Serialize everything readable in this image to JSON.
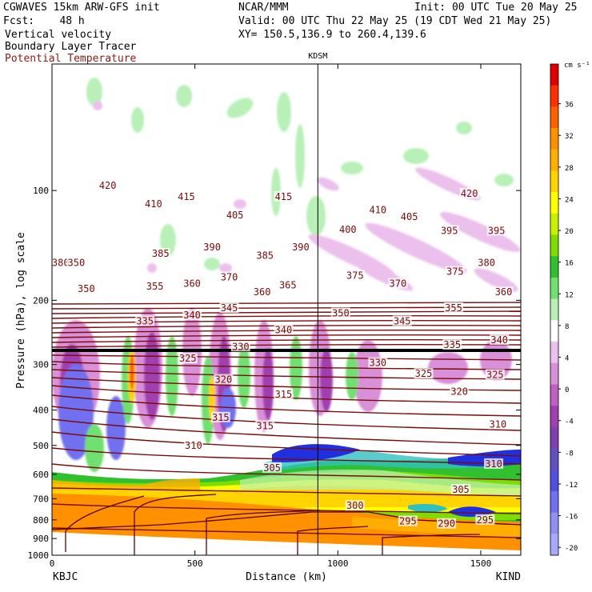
{
  "header": {
    "left_line1": "CGWAVES 15km ARW-GFS init",
    "left_line2": "Fcst:    48 h",
    "center_line1": "NCAR/MMM",
    "right_line1": "Init: 00 UTC Tue 20 May 25",
    "right_line2": "Valid: 00 UTC Thu 22 May 25 (19 CDT Wed 21 May 25)",
    "field1": "Vertical velocity",
    "field2": "Boundary Layer Tracer",
    "field3": "Potential Temperature",
    "xy": "XY= 150.5,136.9 to 260.4,139.6",
    "field3_color": "#8b1a1a"
  },
  "chart_data": {
    "type": "heatmap",
    "xlabel": "Distance (km)",
    "ylabel": "Pressure (hPa), log scale",
    "xlim": [
      0,
      1640
    ],
    "ylim": [
      1000,
      45
    ],
    "x_ticks": [
      0,
      500,
      1000,
      1500
    ],
    "y_ticks": [
      100,
      200,
      300,
      400,
      500,
      600,
      700,
      800,
      900,
      1000
    ],
    "left_station": "KBJC",
    "right_station": "KIND",
    "marker_station": "KDSM",
    "marker_x": 930,
    "colorbar": {
      "unit": "cm s⁻¹",
      "ticks": [
        36,
        32,
        28,
        24,
        20,
        16,
        12,
        8,
        4,
        0,
        -4,
        -8,
        -12,
        -16,
        -20
      ],
      "colors": [
        "#e00000",
        "#ff3000",
        "#ff6000",
        "#ff9000",
        "#ffb000",
        "#ffd400",
        "#ffff00",
        "#c8f000",
        "#7ddc00",
        "#30c030",
        "#70e070",
        "#b8f0b8",
        "#ffffff",
        "#ecc0ec",
        "#d890d8",
        "#c060c0",
        "#a040b0",
        "#8040b0",
        "#6050c0",
        "#5050e0",
        "#7070f0",
        "#9090f0",
        "#a8a8ff"
      ]
    },
    "theta_labels": [
      {
        "x": 195,
        "p": 97,
        "t": "420"
      },
      {
        "x": 355,
        "p": 109,
        "t": "410"
      },
      {
        "x": 470,
        "p": 104,
        "t": "415"
      },
      {
        "x": 810,
        "p": 104,
        "t": "415"
      },
      {
        "x": 1460,
        "p": 102,
        "t": "420"
      },
      {
        "x": 1140,
        "p": 113,
        "t": "410"
      },
      {
        "x": 1250,
        "p": 118,
        "t": "405"
      },
      {
        "x": 640,
        "p": 117,
        "t": "405"
      },
      {
        "x": 1035,
        "p": 128,
        "t": "400"
      },
      {
        "x": 1390,
        "p": 129,
        "t": "395"
      },
      {
        "x": 1555,
        "p": 129,
        "t": "395"
      },
      {
        "x": 560,
        "p": 143,
        "t": "390"
      },
      {
        "x": 870,
        "p": 143,
        "t": "390"
      },
      {
        "x": 380,
        "p": 149,
        "t": "385"
      },
      {
        "x": 745,
        "p": 151,
        "t": "385"
      },
      {
        "x": 1060,
        "p": 171,
        "t": "375"
      },
      {
        "x": 1410,
        "p": 167,
        "t": "375"
      },
      {
        "x": 620,
        "p": 173,
        "t": "370"
      },
      {
        "x": 1210,
        "p": 180,
        "t": "370"
      },
      {
        "x": 825,
        "p": 182,
        "t": "365"
      },
      {
        "x": 490,
        "p": 180,
        "t": "360"
      },
      {
        "x": 735,
        "p": 190,
        "t": "360"
      },
      {
        "x": 1580,
        "p": 190,
        "t": "360"
      },
      {
        "x": 120,
        "p": 186,
        "t": "350"
      },
      {
        "x": 360,
        "p": 183,
        "t": "355"
      },
      {
        "x": 1405,
        "p": 210,
        "t": "355"
      },
      {
        "x": 1010,
        "p": 217,
        "t": "350"
      },
      {
        "x": 620,
        "p": 210,
        "t": "345"
      },
      {
        "x": 1225,
        "p": 228,
        "t": "345"
      },
      {
        "x": 325,
        "p": 228,
        "t": "335"
      },
      {
        "x": 490,
        "p": 220,
        "t": "340"
      },
      {
        "x": 810,
        "p": 241,
        "t": "340"
      },
      {
        "x": 1565,
        "p": 257,
        "t": "340"
      },
      {
        "x": 1400,
        "p": 265,
        "t": "335"
      },
      {
        "x": 660,
        "p": 268,
        "t": "330"
      },
      {
        "x": 1140,
        "p": 297,
        "t": "330"
      },
      {
        "x": 475,
        "p": 289,
        "t": "325"
      },
      {
        "x": 1300,
        "p": 318,
        "t": "325"
      },
      {
        "x": 1550,
        "p": 320,
        "t": "325"
      },
      {
        "x": 600,
        "p": 330,
        "t": "320"
      },
      {
        "x": 1425,
        "p": 356,
        "t": "320"
      },
      {
        "x": 810,
        "p": 362,
        "t": "315"
      },
      {
        "x": 590,
        "p": 419,
        "t": "315"
      },
      {
        "x": 745,
        "p": 442,
        "t": "315"
      },
      {
        "x": 495,
        "p": 500,
        "t": "310"
      },
      {
        "x": 1545,
        "p": 562,
        "t": "310"
      },
      {
        "x": 1560,
        "p": 438,
        "t": "310"
      },
      {
        "x": 770,
        "p": 576,
        "t": "305"
      },
      {
        "x": 1430,
        "p": 661,
        "t": "305"
      },
      {
        "x": 1060,
        "p": 732,
        "t": "300"
      },
      {
        "x": 1245,
        "p": 807,
        "t": "295"
      },
      {
        "x": 1515,
        "p": 800,
        "t": "295"
      },
      {
        "x": 1380,
        "p": 820,
        "t": "290"
      },
      {
        "x": 30,
        "p": 158,
        "t": "380"
      },
      {
        "x": 85,
        "p": 158,
        "t": "350"
      },
      {
        "x": 1520,
        "p": 158,
        "t": "380"
      }
    ]
  }
}
